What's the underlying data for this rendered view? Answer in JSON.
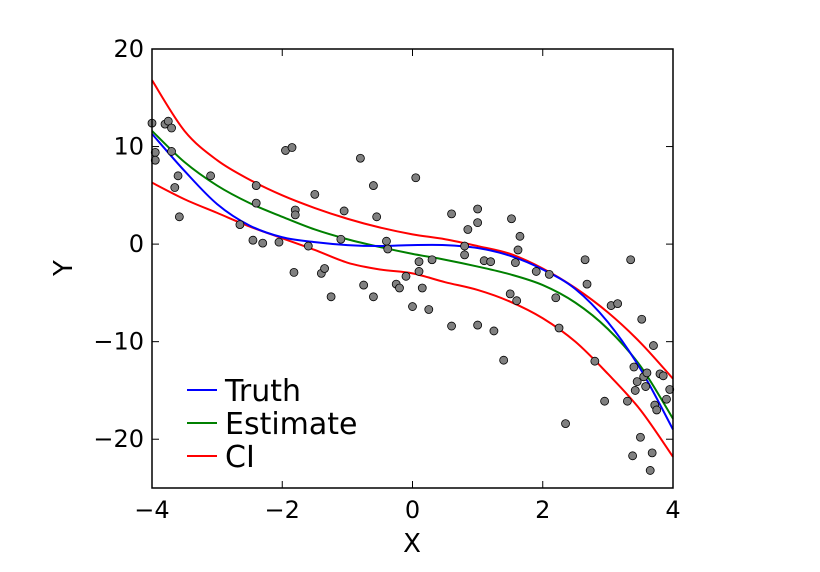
{
  "chart_data": {
    "type": "scatter",
    "xlabel": "X",
    "ylabel": "Y",
    "xlim": [
      -4,
      4
    ],
    "ylim": [
      -25,
      20
    ],
    "xticks": [
      -4,
      -2,
      0,
      2,
      4
    ],
    "xtick_labels": [
      "−4",
      "−2",
      "0",
      "2",
      "4"
    ],
    "yticks": [
      20,
      10,
      0,
      -10,
      -20
    ],
    "ytick_labels": [
      "20",
      "10",
      "0",
      "−10",
      "−20"
    ],
    "grid": false,
    "legend_position": "lower-left",
    "points": [
      [
        -4.0,
        12.4
      ],
      [
        -3.95,
        9.4
      ],
      [
        -3.95,
        8.6
      ],
      [
        -3.8,
        12.3
      ],
      [
        -3.75,
        12.6
      ],
      [
        -3.7,
        11.9
      ],
      [
        -3.7,
        9.5
      ],
      [
        -3.65,
        5.8
      ],
      [
        -3.6,
        7.0
      ],
      [
        -3.58,
        2.8
      ],
      [
        -3.1,
        7.0
      ],
      [
        -2.65,
        2.0
      ],
      [
        -2.45,
        0.4
      ],
      [
        -2.4,
        6.0
      ],
      [
        -2.4,
        4.2
      ],
      [
        -2.3,
        0.1
      ],
      [
        -2.05,
        0.2
      ],
      [
        -1.95,
        9.6
      ],
      [
        -1.85,
        9.9
      ],
      [
        -1.82,
        -2.9
      ],
      [
        -1.8,
        3.5
      ],
      [
        -1.8,
        3.0
      ],
      [
        -1.6,
        -0.2
      ],
      [
        -1.5,
        5.1
      ],
      [
        -1.4,
        -3.0
      ],
      [
        -1.35,
        -2.5
      ],
      [
        -1.25,
        -5.4
      ],
      [
        -1.1,
        0.5
      ],
      [
        -1.05,
        3.4
      ],
      [
        -0.8,
        8.8
      ],
      [
        -0.75,
        -4.2
      ],
      [
        -0.6,
        6.0
      ],
      [
        -0.6,
        -5.4
      ],
      [
        -0.55,
        2.8
      ],
      [
        -0.4,
        0.3
      ],
      [
        -0.38,
        -0.5
      ],
      [
        -0.25,
        -4.1
      ],
      [
        -0.2,
        -4.5
      ],
      [
        -0.1,
        -3.3
      ],
      [
        0.0,
        -6.4
      ],
      [
        0.05,
        6.8
      ],
      [
        0.1,
        -2.8
      ],
      [
        0.1,
        -1.8
      ],
      [
        0.15,
        -4.5
      ],
      [
        0.25,
        -6.7
      ],
      [
        0.3,
        -1.6
      ],
      [
        0.6,
        3.1
      ],
      [
        0.6,
        -8.4
      ],
      [
        0.8,
        -0.2
      ],
      [
        0.8,
        -1.1
      ],
      [
        0.85,
        1.5
      ],
      [
        1.0,
        3.6
      ],
      [
        1.0,
        2.2
      ],
      [
        1.0,
        -8.3
      ],
      [
        1.1,
        -1.7
      ],
      [
        1.2,
        -1.8
      ],
      [
        1.25,
        -8.9
      ],
      [
        1.4,
        -11.9
      ],
      [
        1.5,
        -5.1
      ],
      [
        1.52,
        2.6
      ],
      [
        1.58,
        -1.9
      ],
      [
        1.6,
        -5.8
      ],
      [
        1.62,
        -0.6
      ],
      [
        1.65,
        0.8
      ],
      [
        1.9,
        -2.8
      ],
      [
        2.1,
        -3.1
      ],
      [
        2.2,
        -5.5
      ],
      [
        2.25,
        -8.6
      ],
      [
        2.35,
        -18.4
      ],
      [
        2.65,
        -1.6
      ],
      [
        2.68,
        -4.1
      ],
      [
        2.8,
        -12.0
      ],
      [
        2.95,
        -16.1
      ],
      [
        3.05,
        -6.3
      ],
      [
        3.15,
        -6.1
      ],
      [
        3.3,
        -16.1
      ],
      [
        3.35,
        -1.6
      ],
      [
        3.38,
        -21.7
      ],
      [
        3.4,
        -12.6
      ],
      [
        3.42,
        -15.0
      ],
      [
        3.45,
        -14.1
      ],
      [
        3.5,
        -19.8
      ],
      [
        3.52,
        -7.7
      ],
      [
        3.55,
        -13.6
      ],
      [
        3.58,
        -14.6
      ],
      [
        3.6,
        -13.2
      ],
      [
        3.65,
        -23.2
      ],
      [
        3.68,
        -21.4
      ],
      [
        3.7,
        -10.4
      ],
      [
        3.72,
        -16.5
      ],
      [
        3.75,
        -17.0
      ],
      [
        3.8,
        -13.3
      ],
      [
        3.85,
        -13.5
      ],
      [
        3.9,
        -15.9
      ],
      [
        3.95,
        -14.9
      ]
    ],
    "series": [
      {
        "name": "Truth",
        "color": "#0000ff",
        "x": [
          -4,
          -3.5,
          -3,
          -2.5,
          -2,
          -1.5,
          -1,
          -0.5,
          0,
          0.5,
          1,
          1.5,
          2,
          2.5,
          3,
          3.5,
          4
        ],
        "y": [
          11.3,
          7.5,
          4.1,
          1.9,
          0.7,
          0.2,
          -0.1,
          -0.2,
          -0.1,
          -0.1,
          -0.4,
          -1.2,
          -2.6,
          -4.6,
          -8.0,
          -12.8,
          -19.0
        ]
      },
      {
        "name": "Estimate",
        "color": "#008000",
        "x": [
          -4,
          -3.5,
          -3,
          -2.5,
          -2,
          -1.5,
          -1,
          -0.5,
          0,
          0.5,
          1,
          1.5,
          2,
          2.5,
          3,
          3.5,
          4
        ],
        "y": [
          11.6,
          8.4,
          6.0,
          4.2,
          2.8,
          1.5,
          0.5,
          -0.3,
          -1.0,
          -1.6,
          -2.3,
          -3.1,
          -4.2,
          -6.0,
          -8.7,
          -12.5,
          -17.9
        ]
      },
      {
        "name": "CI",
        "color": "#ff0000",
        "x": [
          -4,
          -3.5,
          -3,
          -2.5,
          -2,
          -1.5,
          -1,
          -0.5,
          0,
          0.5,
          1,
          1.5,
          2,
          2.5,
          3,
          3.5,
          4
        ],
        "y": [
          16.8,
          11.6,
          8.6,
          6.6,
          5.0,
          3.7,
          2.6,
          1.7,
          1.0,
          0.5,
          -0.2,
          -1.0,
          -2.5,
          -4.5,
          -7.0,
          -10.1,
          -13.8
        ]
      },
      {
        "name": "",
        "color": "#ff0000",
        "x": [
          -4,
          -3.5,
          -3,
          -2.5,
          -2,
          -1.5,
          -1,
          -0.5,
          0,
          0.5,
          1,
          1.5,
          2,
          2.5,
          3,
          3.5,
          4
        ],
        "y": [
          6.3,
          4.6,
          3.2,
          1.8,
          0.6,
          -0.6,
          -1.9,
          -2.6,
          -3.0,
          -3.9,
          -4.7,
          -5.9,
          -7.6,
          -10.0,
          -13.3,
          -17.0,
          -21.8
        ]
      }
    ],
    "legend": [
      {
        "label": "Truth",
        "color": "#0000ff"
      },
      {
        "label": "Estimate",
        "color": "#008000"
      },
      {
        "label": "CI",
        "color": "#ff0000"
      }
    ],
    "point_color": "#808080"
  }
}
